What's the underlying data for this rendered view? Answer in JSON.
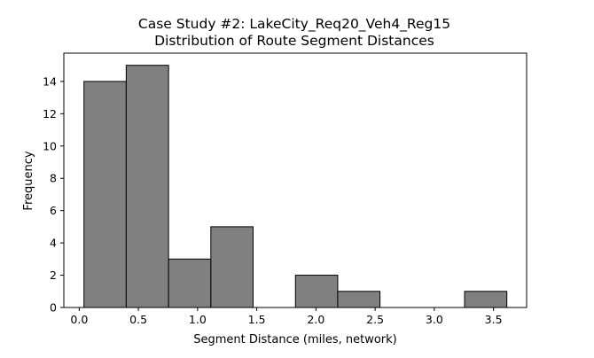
{
  "chart_data": {
    "type": "bar",
    "title_line1": "Case Study #2: LakeCity_Req20_Veh4_Reg15",
    "title_line2": "Distribution of Route Segment Distances",
    "xlabel": "Segment Distance (miles, network)",
    "ylabel": "Frequency",
    "bar_color": "#808080",
    "edge_color": "#000000",
    "xlim": [
      -0.13,
      3.78
    ],
    "ylim": [
      0,
      15.75
    ],
    "x_ticks": [
      0.0,
      0.5,
      1.0,
      1.5,
      2.0,
      2.5,
      3.0,
      3.5
    ],
    "x_tick_labels": [
      "0.0",
      "0.5",
      "1.0",
      "1.5",
      "2.0",
      "2.5",
      "3.0",
      "3.5"
    ],
    "y_ticks": [
      0,
      2,
      4,
      6,
      8,
      10,
      12,
      14
    ],
    "y_tick_labels": [
      "0",
      "2",
      "4",
      "6",
      "8",
      "10",
      "12",
      "14"
    ],
    "bins": [
      {
        "x0": 0.04,
        "x1": 0.397,
        "count": 14
      },
      {
        "x0": 0.397,
        "x1": 0.755,
        "count": 15
      },
      {
        "x0": 0.755,
        "x1": 1.112,
        "count": 3
      },
      {
        "x0": 1.112,
        "x1": 1.469,
        "count": 5
      },
      {
        "x0": 1.469,
        "x1": 1.827,
        "count": 0
      },
      {
        "x0": 1.827,
        "x1": 2.184,
        "count": 2
      },
      {
        "x0": 2.184,
        "x1": 2.541,
        "count": 1
      },
      {
        "x0": 2.541,
        "x1": 2.898,
        "count": 0
      },
      {
        "x0": 2.898,
        "x1": 3.256,
        "count": 0
      },
      {
        "x0": 3.256,
        "x1": 3.613,
        "count": 1
      }
    ]
  }
}
